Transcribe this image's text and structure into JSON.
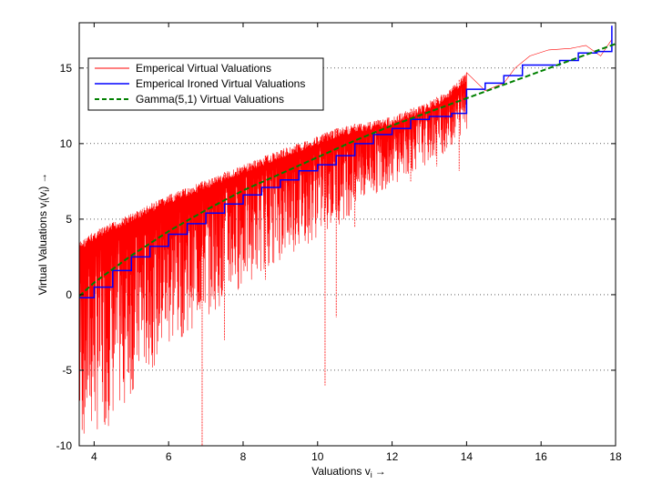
{
  "chart_data": {
    "type": "line",
    "xlabel": "Valuations v",
    "xlabel_sub": "i",
    "xlabel_arrow": "→",
    "ylabel": "Virtual Valuations v",
    "ylabel_sub": "i",
    "ylabel_paren_open": "(v",
    "ylabel_paren_sub": "i",
    "ylabel_paren_close": ")",
    "ylabel_arrow": "→",
    "xlim": [
      3.6,
      18
    ],
    "ylim": [
      -10,
      18
    ],
    "x_ticks": [
      4,
      6,
      8,
      10,
      12,
      14,
      16,
      18
    ],
    "y_ticks": [
      -10,
      -5,
      0,
      5,
      10,
      15
    ],
    "grid": "horizontal-dotted",
    "legend_position": "top-left",
    "series": [
      {
        "name": "Emperical Virtual Valuations",
        "color": "#ff0000",
        "style": "solid-dense-oscillation",
        "points": [
          [
            3.6,
            3.5
          ],
          [
            4.0,
            4.2
          ],
          [
            5.0,
            5.4
          ],
          [
            6.0,
            6.6
          ],
          [
            7.0,
            7.6
          ],
          [
            8.0,
            8.6
          ],
          [
            9.0,
            9.6
          ],
          [
            10.0,
            10.5
          ],
          [
            10.5,
            11.0
          ],
          [
            11.0,
            11.3
          ],
          [
            12.0,
            11.8
          ],
          [
            13.0,
            12.8
          ],
          [
            13.5,
            13.5
          ],
          [
            14.0,
            14.7
          ],
          [
            14.5,
            13.5
          ],
          [
            15.0,
            14.0
          ],
          [
            15.3,
            15.0
          ],
          [
            15.7,
            15.8
          ],
          [
            16.2,
            16.2
          ],
          [
            16.8,
            16.3
          ],
          [
            17.2,
            16.5
          ],
          [
            17.6,
            15.8
          ],
          [
            17.9,
            16.9
          ]
        ],
        "lower_envelope": [
          [
            3.6,
            -10
          ],
          [
            4.5,
            -8.5
          ],
          [
            5.5,
            -5.0
          ],
          [
            6.5,
            -2.5
          ],
          [
            7.5,
            -0.5
          ],
          [
            8.5,
            1.5
          ],
          [
            9.5,
            3.0
          ],
          [
            10.5,
            4.5
          ],
          [
            11.5,
            6.5
          ],
          [
            12.5,
            8.0
          ],
          [
            13.5,
            9.5
          ],
          [
            14.0,
            11.0
          ]
        ],
        "notable_dips": [
          [
            6.9,
            -10
          ],
          [
            7.5,
            -3.0
          ],
          [
            8.6,
            1.0
          ],
          [
            10.2,
            -6.0
          ],
          [
            10.5,
            -1.5
          ],
          [
            11.0,
            4.5
          ],
          [
            12.5,
            7.5
          ],
          [
            13.8,
            8.2
          ],
          [
            13.2,
            8.5
          ]
        ]
      },
      {
        "name": "Emperical Ironed Virtual Valuations",
        "color": "#0000ff",
        "style": "solid-step",
        "points": [
          [
            3.6,
            -0.2
          ],
          [
            4.0,
            0.5
          ],
          [
            4.5,
            1.6
          ],
          [
            5.0,
            2.5
          ],
          [
            5.5,
            3.2
          ],
          [
            6.0,
            4.0
          ],
          [
            6.5,
            4.7
          ],
          [
            7.0,
            5.4
          ],
          [
            7.5,
            6.0
          ],
          [
            8.0,
            6.6
          ],
          [
            8.5,
            7.1
          ],
          [
            9.0,
            7.6
          ],
          [
            9.5,
            8.2
          ],
          [
            10.0,
            8.6
          ],
          [
            10.5,
            9.2
          ],
          [
            11.0,
            10.0
          ],
          [
            11.5,
            10.6
          ],
          [
            12.0,
            11.0
          ],
          [
            12.5,
            11.6
          ],
          [
            13.0,
            11.8
          ],
          [
            13.6,
            12.0
          ],
          [
            14.0,
            13.6
          ],
          [
            14.5,
            14.0
          ],
          [
            15.0,
            14.5
          ],
          [
            15.5,
            15.2
          ],
          [
            16.0,
            15.2
          ],
          [
            16.5,
            15.5
          ],
          [
            17.0,
            16.0
          ],
          [
            17.5,
            16.1
          ],
          [
            17.7,
            16.1
          ],
          [
            17.9,
            17.8
          ]
        ]
      },
      {
        "name": "Gamma(5,1) Virtual Valuations",
        "color": "#008000",
        "style": "dashed",
        "points": [
          [
            3.6,
            -0.1
          ],
          [
            4.0,
            0.8
          ],
          [
            5.0,
            2.6
          ],
          [
            6.0,
            4.2
          ],
          [
            7.0,
            5.6
          ],
          [
            8.0,
            6.9
          ],
          [
            9.0,
            8.0
          ],
          [
            10.0,
            9.1
          ],
          [
            11.0,
            10.2
          ],
          [
            12.0,
            11.2
          ],
          [
            13.0,
            12.1
          ],
          [
            14.0,
            13.0
          ],
          [
            15.0,
            13.9
          ],
          [
            16.0,
            14.8
          ],
          [
            17.0,
            15.7
          ],
          [
            18.0,
            16.6
          ]
        ]
      }
    ]
  }
}
